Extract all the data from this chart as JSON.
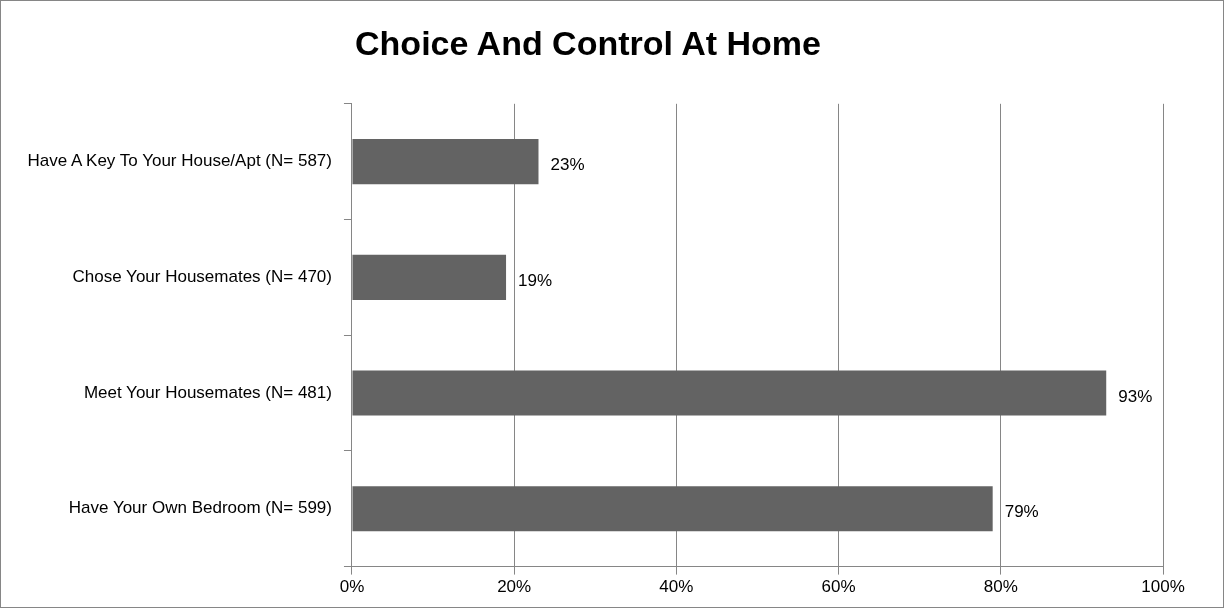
{
  "chart_data": {
    "type": "bar",
    "orientation": "horizontal",
    "title": "Choice And Control At Home",
    "categories": [
      "Have A Key To Your House/Apt (N= 587)",
      "Chose Your Housemates (N= 470)",
      "Meet Your Housemates (N= 481)",
      "Have Your Own Bedroom (N= 599)"
    ],
    "values": [
      23,
      19,
      93,
      79
    ],
    "color": "#636363",
    "value_labels": [
      "23%",
      "19%",
      "93%",
      "79%"
    ],
    "xlim": [
      0,
      100
    ],
    "xticks": [
      {
        "value": 0,
        "label": "0%"
      },
      {
        "value": 20,
        "label": "20%"
      },
      {
        "value": 40,
        "label": "40%"
      },
      {
        "value": 60,
        "label": "60%"
      },
      {
        "value": 80,
        "label": "80%"
      },
      {
        "value": 100,
        "label": "100%"
      }
    ],
    "grid": "x",
    "legend": false
  }
}
